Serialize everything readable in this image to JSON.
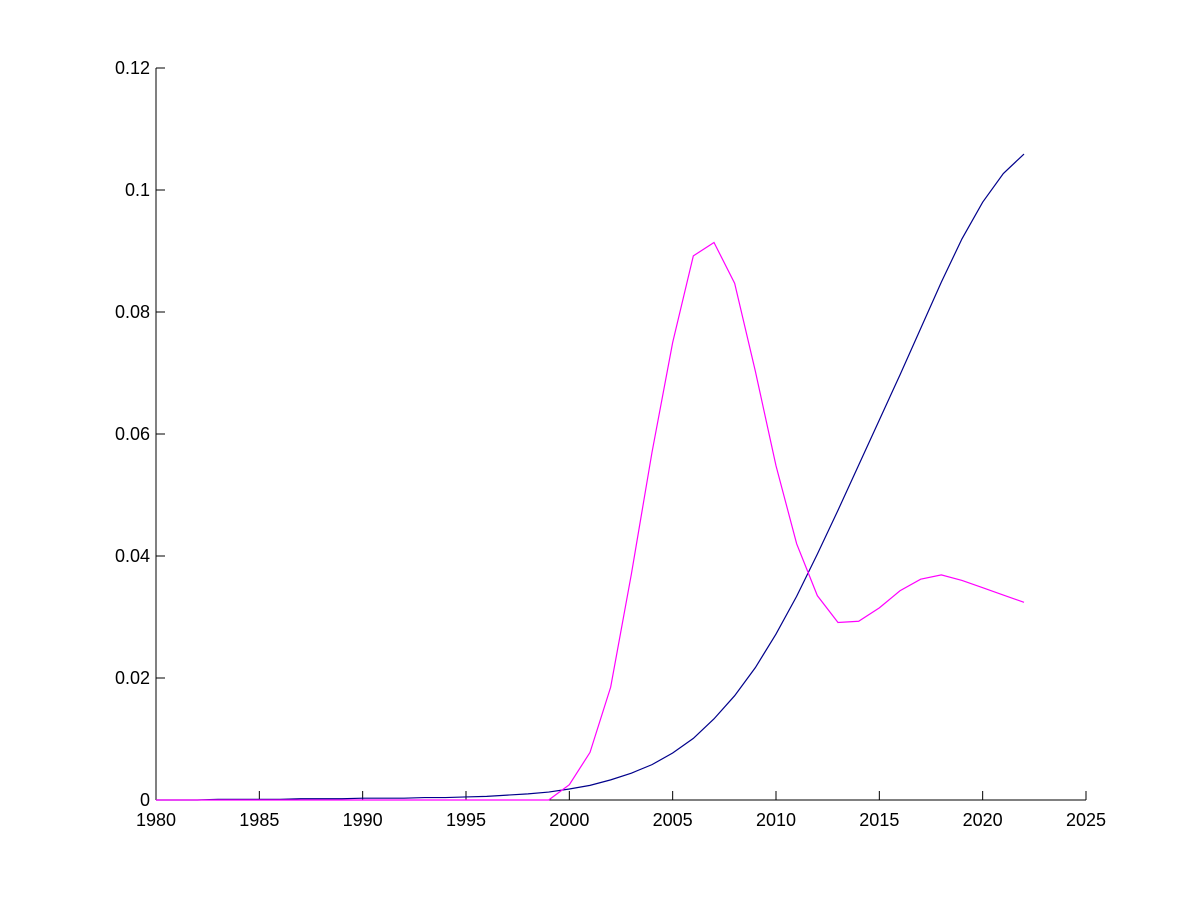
{
  "chart_data": {
    "type": "line",
    "x": [
      1980,
      1981,
      1982,
      1983,
      1984,
      1985,
      1986,
      1987,
      1988,
      1989,
      1990,
      1991,
      1992,
      1993,
      1994,
      1995,
      1996,
      1997,
      1998,
      1999,
      2000,
      2001,
      2002,
      2003,
      2004,
      2005,
      2006,
      2007,
      2008,
      2009,
      2010,
      2011,
      2012,
      2013,
      2014,
      2015,
      2016,
      2017,
      2018,
      2019,
      2020,
      2021,
      2022
    ],
    "series": [
      {
        "color": "#00008b",
        "values": [
          0,
          0,
          0,
          0.0001,
          0.0001,
          0.0001,
          0.0001,
          0.0002,
          0.0002,
          0.0002,
          0.0003,
          0.0003,
          0.0003,
          0.0004,
          0.0004,
          0.0005,
          0.0006,
          0.0008,
          0.001,
          0.0013,
          0.0018,
          0.0024,
          0.0033,
          0.0044,
          0.0058,
          0.0077,
          0.0101,
          0.0133,
          0.0171,
          0.0217,
          0.0272,
          0.0334,
          0.0403,
          0.0475,
          0.0549,
          0.0623,
          0.0697,
          0.0773,
          0.0849,
          0.092,
          0.098,
          0.1027,
          0.1059
        ]
      },
      {
        "color": "#ff00ff",
        "values": [
          0,
          0,
          0,
          0,
          0,
          0,
          0,
          0,
          0,
          0,
          0,
          0,
          0,
          0,
          0,
          0,
          0,
          0,
          0,
          0,
          0.0025,
          0.0078,
          0.0185,
          0.037,
          0.057,
          0.075,
          0.0892,
          0.0914,
          0.0847,
          0.0703,
          0.0548,
          0.042,
          0.0335,
          0.0291,
          0.0293,
          0.0315,
          0.0343,
          0.0362,
          0.0369,
          0.036,
          0.0348,
          0.0336,
          0.0324
        ]
      }
    ],
    "xlim": [
      1980,
      2025
    ],
    "xticks": [
      1980,
      1985,
      1990,
      1995,
      2000,
      2005,
      2010,
      2015,
      2020,
      2025
    ],
    "ylim": [
      0,
      0.12
    ],
    "yticks": [
      0,
      0.02,
      0.04,
      0.06,
      0.08,
      0.1,
      0.12
    ]
  }
}
